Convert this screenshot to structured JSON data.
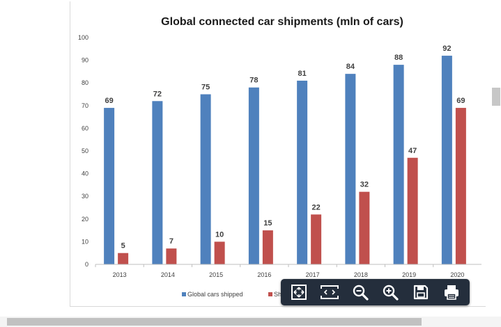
{
  "viewer": {
    "toolbar": {
      "buttons": [
        {
          "name": "fit-to-page-button",
          "icon": "fit-to-page-icon"
        },
        {
          "name": "fit-width-button",
          "icon": "fit-width-icon"
        },
        {
          "name": "zoom-out-button",
          "icon": "zoom-out-icon"
        },
        {
          "name": "zoom-in-button",
          "icon": "zoom-in-icon"
        },
        {
          "name": "save-button",
          "icon": "floppy-disk-icon"
        },
        {
          "name": "print-button",
          "icon": "printer-icon"
        }
      ]
    }
  },
  "chart_data": {
    "type": "bar",
    "title": "Global connected car shipments (mln of cars)",
    "categories": [
      "2013",
      "2014",
      "2015",
      "2016",
      "2017",
      "2018",
      "2019",
      "2020"
    ],
    "series": [
      {
        "name": "Global cars shipped",
        "color": "#4f81bd",
        "values": [
          69,
          72,
          75,
          78,
          81,
          84,
          88,
          92
        ]
      },
      {
        "name": "Sh",
        "color": "#c0504d",
        "values": [
          5,
          7,
          10,
          15,
          22,
          32,
          47,
          69
        ]
      }
    ],
    "ylim": [
      0,
      100
    ],
    "yticks": [
      "0",
      "10",
      "20",
      "30",
      "40",
      "50",
      "60",
      "70",
      "80",
      "90",
      "100"
    ],
    "grid": false,
    "legend": "bottom"
  }
}
